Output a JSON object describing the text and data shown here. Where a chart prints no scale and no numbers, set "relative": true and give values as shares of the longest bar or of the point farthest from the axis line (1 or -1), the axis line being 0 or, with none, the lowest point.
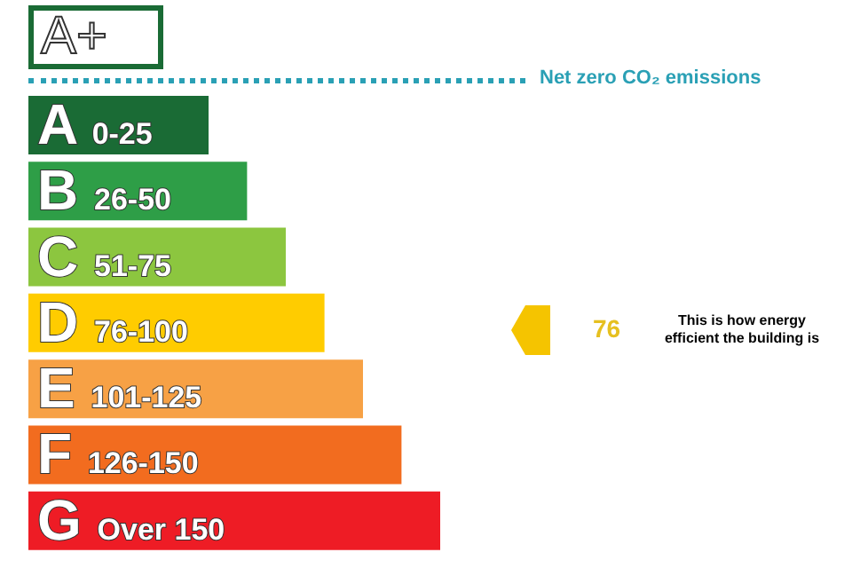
{
  "chart_data": {
    "type": "bar",
    "orientation": "horizontal",
    "relative": true,
    "categories": [
      "A 0-25",
      "B 26-50",
      "C 51-75",
      "D 76-100",
      "E 101-125",
      "F 126-150",
      "G Over 150"
    ],
    "values": [
      0.4375,
      0.531,
      0.625,
      0.719,
      0.8125,
      0.906,
      1
    ],
    "colors": [
      "#1a6b35",
      "#2e9e47",
      "#8cc63f",
      "#ffcc00",
      "#f7a145",
      "#f26c1f",
      "#ee1c25"
    ],
    "annotations": [
      "A+",
      "Net zero CO₂ emissions",
      "76",
      "This is how energy efficient the building is"
    ],
    "legend": false,
    "grid": false
  }
}
